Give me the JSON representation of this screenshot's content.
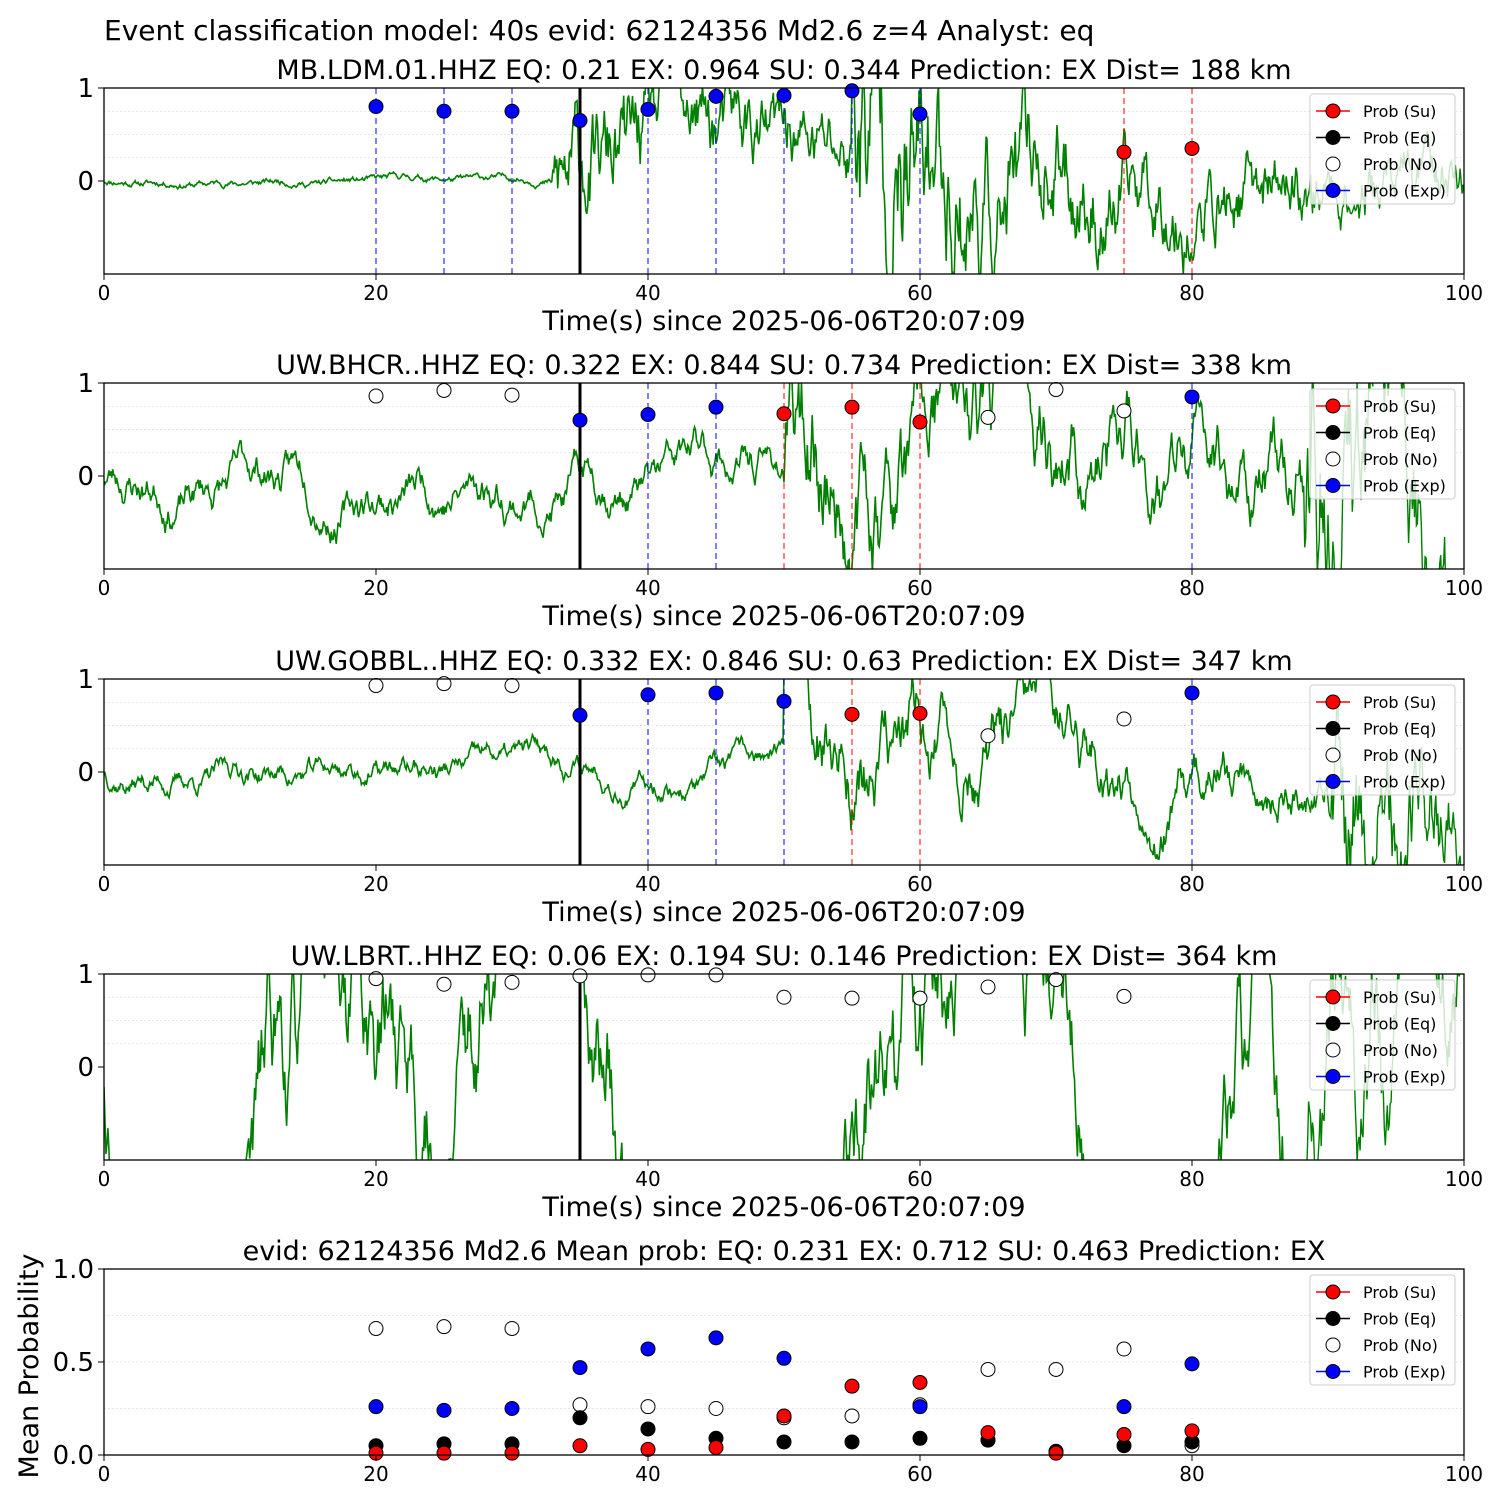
{
  "suptitle": "Event classification model: 40s evid: 62124356 Md2.6 z=4 Analyst: eq",
  "colors": {
    "waveform": "#008000",
    "waveform_faded": "#b9dcb5",
    "su": "#ff0000",
    "eq": "#000000",
    "no": "#ffffff",
    "exp": "#0000ff",
    "marker_edge": "#000000"
  },
  "legend": [
    "Prob (Su)",
    "Prob (Eq)",
    "Prob (No)",
    "Prob (Exp)"
  ],
  "chart_data": [
    {
      "type": "line",
      "title": "MB.LDM.01.HHZ   EQ: 0.21  EX: 0.964  SU: 0.344   Prediction: EX    Dist= 188 km",
      "xlabel": "Time(s) since 2025-06-06T20:07:09",
      "ylabel": "",
      "xlim": [
        0,
        100
      ],
      "ylim": [
        -1,
        1
      ],
      "xticks": [
        "0",
        "20",
        "40",
        "60",
        "80",
        "100"
      ],
      "yticks": [
        "0",
        "1"
      ],
      "legend_position": "top-right",
      "arrival_time": 35,
      "waveform": {
        "seed": 11,
        "noise_before": 0.02,
        "onset1": 33,
        "amp1": 0.25,
        "onset2": 55,
        "amp2": 0.6,
        "decay_to": 0.15,
        "period_scale": 1.0
      },
      "vlines": [
        {
          "x": 20,
          "color": "exp"
        },
        {
          "x": 25,
          "color": "exp"
        },
        {
          "x": 30,
          "color": "exp"
        },
        {
          "x": 35,
          "color": "exp"
        },
        {
          "x": 40,
          "color": "exp"
        },
        {
          "x": 45,
          "color": "exp"
        },
        {
          "x": 50,
          "color": "exp"
        },
        {
          "x": 55,
          "color": "exp"
        },
        {
          "x": 60,
          "color": "exp"
        },
        {
          "x": 75,
          "color": "su"
        },
        {
          "x": 80,
          "color": "su"
        }
      ],
      "points": [
        {
          "x": 20,
          "y": 0.8,
          "cls": "exp"
        },
        {
          "x": 25,
          "y": 0.75,
          "cls": "exp"
        },
        {
          "x": 30,
          "y": 0.75,
          "cls": "exp"
        },
        {
          "x": 35,
          "y": 0.65,
          "cls": "exp"
        },
        {
          "x": 40,
          "y": 0.77,
          "cls": "exp"
        },
        {
          "x": 45,
          "y": 0.91,
          "cls": "exp"
        },
        {
          "x": 50,
          "y": 0.92,
          "cls": "exp"
        },
        {
          "x": 55,
          "y": 0.97,
          "cls": "exp"
        },
        {
          "x": 60,
          "y": 0.72,
          "cls": "exp"
        },
        {
          "x": 75,
          "y": 0.31,
          "cls": "su"
        },
        {
          "x": 80,
          "y": 0.35,
          "cls": "su"
        }
      ]
    },
    {
      "type": "line",
      "title": "UW.BHCR..HHZ   EQ: 0.322  EX: 0.844  SU: 0.734   Prediction: EX    Dist= 338 km",
      "xlabel": "Time(s) since 2025-06-06T20:07:09",
      "ylabel": "",
      "xlim": [
        0,
        100
      ],
      "ylim": [
        -1,
        1
      ],
      "xticks": [
        "0",
        "20",
        "40",
        "60",
        "80",
        "100"
      ],
      "yticks": [
        "0",
        "1"
      ],
      "legend_position": "top-right",
      "arrival_time": 35,
      "waveform": {
        "seed": 23,
        "noise_before": 0.1,
        "onset1": 50,
        "amp1": 0.2,
        "onset2": 88,
        "amp2": 0.45,
        "decay_to": 0.25,
        "period_scale": 1.8
      },
      "vlines": [
        {
          "x": 35,
          "color": "exp"
        },
        {
          "x": 40,
          "color": "exp"
        },
        {
          "x": 45,
          "color": "exp"
        },
        {
          "x": 50,
          "color": "su"
        },
        {
          "x": 55,
          "color": "su"
        },
        {
          "x": 60,
          "color": "su"
        },
        {
          "x": 80,
          "color": "exp"
        }
      ],
      "points": [
        {
          "x": 20,
          "y": 0.86,
          "cls": "no"
        },
        {
          "x": 25,
          "y": 0.92,
          "cls": "no"
        },
        {
          "x": 30,
          "y": 0.87,
          "cls": "no"
        },
        {
          "x": 35,
          "y": 0.6,
          "cls": "exp"
        },
        {
          "x": 40,
          "y": 0.66,
          "cls": "exp"
        },
        {
          "x": 45,
          "y": 0.74,
          "cls": "exp"
        },
        {
          "x": 50,
          "y": 0.67,
          "cls": "su"
        },
        {
          "x": 55,
          "y": 0.74,
          "cls": "su"
        },
        {
          "x": 60,
          "y": 0.58,
          "cls": "su"
        },
        {
          "x": 65,
          "y": 0.63,
          "cls": "no"
        },
        {
          "x": 70,
          "y": 0.93,
          "cls": "no"
        },
        {
          "x": 75,
          "y": 0.7,
          "cls": "no"
        },
        {
          "x": 80,
          "y": 0.85,
          "cls": "exp"
        }
      ]
    },
    {
      "type": "line",
      "title": "UW.GOBBL..HHZ   EQ: 0.332  EX: 0.846  SU: 0.63   Prediction: EX    Dist= 347 km",
      "xlabel": "Time(s) since 2025-06-06T20:07:09",
      "ylabel": "",
      "xlim": [
        0,
        100
      ],
      "ylim": [
        -1,
        1
      ],
      "xticks": [
        "0",
        "20",
        "40",
        "60",
        "80",
        "100"
      ],
      "yticks": [
        "0",
        "1"
      ],
      "legend_position": "top-right",
      "arrival_time": 35,
      "waveform": {
        "seed": 37,
        "noise_before": 0.06,
        "onset1": 50,
        "amp1": 0.2,
        "onset2": 90,
        "amp2": 0.4,
        "decay_to": 0.12,
        "period_scale": 1.6
      },
      "vlines": [
        {
          "x": 35,
          "color": "exp"
        },
        {
          "x": 40,
          "color": "exp"
        },
        {
          "x": 45,
          "color": "exp"
        },
        {
          "x": 50,
          "color": "exp"
        },
        {
          "x": 55,
          "color": "su"
        },
        {
          "x": 60,
          "color": "su"
        },
        {
          "x": 80,
          "color": "exp"
        }
      ],
      "points": [
        {
          "x": 20,
          "y": 0.93,
          "cls": "no"
        },
        {
          "x": 25,
          "y": 0.95,
          "cls": "no"
        },
        {
          "x": 30,
          "y": 0.93,
          "cls": "no"
        },
        {
          "x": 35,
          "y": 0.61,
          "cls": "exp"
        },
        {
          "x": 40,
          "y": 0.83,
          "cls": "exp"
        },
        {
          "x": 45,
          "y": 0.85,
          "cls": "exp"
        },
        {
          "x": 50,
          "y": 0.76,
          "cls": "exp"
        },
        {
          "x": 55,
          "y": 0.62,
          "cls": "su"
        },
        {
          "x": 60,
          "y": 0.63,
          "cls": "su"
        },
        {
          "x": 65,
          "y": 0.39,
          "cls": "no"
        },
        {
          "x": 75,
          "y": 0.57,
          "cls": "no"
        },
        {
          "x": 80,
          "y": 0.85,
          "cls": "exp"
        }
      ]
    },
    {
      "type": "line",
      "title": "UW.LBRT..HHZ   EQ: 0.06  EX: 0.194  SU: 0.146   Prediction: EX    Dist= 364 km",
      "xlabel": "Time(s) since 2025-06-06T20:07:09",
      "ylabel": "",
      "xlim": [
        0,
        100
      ],
      "ylim": [
        -1,
        1
      ],
      "xticks": [
        "0",
        "20",
        "40",
        "60",
        "80",
        "100"
      ],
      "yticks": [
        "0",
        "1"
      ],
      "legend_position": "top-right",
      "arrival_time": 35,
      "waveform": {
        "seed": 53,
        "noise_before": 0.4,
        "onset1": 200,
        "amp1": 0.0,
        "onset2": 200,
        "amp2": 0.0,
        "decay_to": 0.4,
        "period_scale": 3.0
      },
      "vlines": [],
      "points": [
        {
          "x": 20,
          "y": 0.95,
          "cls": "no"
        },
        {
          "x": 25,
          "y": 0.89,
          "cls": "no"
        },
        {
          "x": 30,
          "y": 0.91,
          "cls": "no"
        },
        {
          "x": 35,
          "y": 0.98,
          "cls": "no"
        },
        {
          "x": 40,
          "y": 0.99,
          "cls": "no"
        },
        {
          "x": 45,
          "y": 0.99,
          "cls": "no"
        },
        {
          "x": 50,
          "y": 0.75,
          "cls": "no"
        },
        {
          "x": 55,
          "y": 0.74,
          "cls": "no"
        },
        {
          "x": 60,
          "y": 0.74,
          "cls": "no"
        },
        {
          "x": 65,
          "y": 0.86,
          "cls": "no"
        },
        {
          "x": 70,
          "y": 0.94,
          "cls": "no"
        },
        {
          "x": 75,
          "y": 0.76,
          "cls": "no"
        }
      ]
    },
    {
      "type": "scatter",
      "title": "evid: 62124356  Md2.6   Mean prob:   EQ: 0.231  EX: 0.712  SU: 0.463   Prediction: EX",
      "xlabel": "",
      "ylabel": "Mean Probability",
      "xlim": [
        0,
        100
      ],
      "ylim": [
        0,
        1
      ],
      "xticks": [
        "0",
        "20",
        "40",
        "60",
        "80",
        "100"
      ],
      "yticks": [
        "0.0",
        "0.5",
        "1.0"
      ],
      "legend_position": "top-right",
      "series": [
        {
          "name": "Prob (No)",
          "cls": "no",
          "x": [
            20,
            25,
            30,
            35,
            40,
            45,
            50,
            55,
            60,
            65,
            70,
            75,
            80
          ],
          "y": [
            0.68,
            0.69,
            0.68,
            0.27,
            0.26,
            0.25,
            0.2,
            0.21,
            0.27,
            0.46,
            0.46,
            0.57,
            0.05
          ]
        },
        {
          "name": "Prob (Exp)",
          "cls": "exp",
          "x": [
            20,
            25,
            30,
            35,
            40,
            45,
            50,
            60,
            65,
            75,
            80
          ],
          "y": [
            0.26,
            0.24,
            0.25,
            0.47,
            0.57,
            0.63,
            0.52,
            0.26,
            0.08,
            0.26,
            0.49
          ]
        },
        {
          "name": "Prob (Eq)",
          "cls": "eq",
          "x": [
            20,
            25,
            30,
            35,
            40,
            45,
            50,
            55,
            60,
            65,
            70,
            75,
            80
          ],
          "y": [
            0.05,
            0.06,
            0.06,
            0.2,
            0.14,
            0.09,
            0.07,
            0.07,
            0.09,
            0.08,
            0.02,
            0.05,
            0.07
          ]
        },
        {
          "name": "Prob (Su)",
          "cls": "su",
          "x": [
            20,
            25,
            30,
            35,
            40,
            45,
            50,
            55,
            60,
            65,
            70,
            75,
            80
          ],
          "y": [
            0.01,
            0.01,
            0.01,
            0.05,
            0.03,
            0.04,
            0.21,
            0.37,
            0.39,
            0.12,
            0.01,
            0.11,
            0.13
          ]
        }
      ]
    }
  ]
}
